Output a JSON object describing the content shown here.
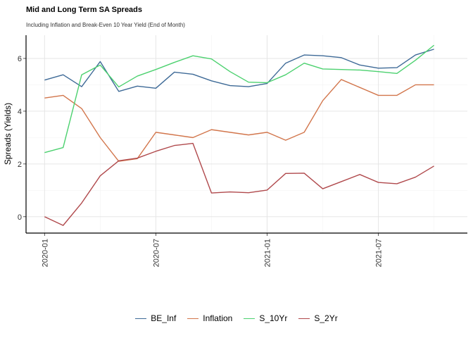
{
  "chart_data": {
    "type": "line",
    "title": "Mid and Long Term SA Spreads",
    "subtitle": "Including Inflation and Break-Even 10 Year Yield (End of Month)",
    "xlabel": "",
    "ylabel": "Spreads (Yields)",
    "x": [
      "2020-01",
      "2020-02",
      "2020-03",
      "2020-04",
      "2020-05",
      "2020-06",
      "2020-07",
      "2020-08",
      "2020-09",
      "2020-10",
      "2020-11",
      "2020-12",
      "2021-01",
      "2021-02",
      "2021-03",
      "2021-04",
      "2021-05",
      "2021-06",
      "2021-07",
      "2021-08",
      "2021-09",
      "2021-10"
    ],
    "x_tick_labels": [
      "2020-01",
      "2020-07",
      "2021-01",
      "2021-07"
    ],
    "x_tick_index": [
      0,
      6,
      12,
      18
    ],
    "xlim_index": [
      -1,
      22.8
    ],
    "y_ticks": [
      0,
      2,
      4,
      6
    ],
    "ylim": [
      -0.62,
      6.88
    ],
    "grid": true,
    "legend_position": "bottom",
    "series": [
      {
        "name": "BE_Inf",
        "color": "#3e6a97",
        "values": [
          5.18,
          5.38,
          4.93,
          5.88,
          4.75,
          4.95,
          4.87,
          5.48,
          5.4,
          5.15,
          4.97,
          4.93,
          5.05,
          5.82,
          6.13,
          6.1,
          6.03,
          5.75,
          5.63,
          5.65,
          6.13,
          6.35
        ]
      },
      {
        "name": "Inflation",
        "color": "#d2764c",
        "values": [
          4.5,
          4.6,
          4.1,
          3.0,
          2.1,
          2.2,
          3.2,
          3.1,
          3.0,
          3.3,
          3.2,
          3.1,
          3.2,
          2.9,
          3.2,
          4.4,
          5.2,
          4.9,
          4.6,
          4.6,
          5.0,
          5.0
        ]
      },
      {
        "name": "S_10Yr",
        "color": "#4cd16f",
        "values": [
          2.43,
          2.62,
          5.38,
          5.75,
          4.92,
          5.33,
          5.58,
          5.85,
          6.1,
          5.98,
          5.5,
          5.1,
          5.08,
          5.38,
          5.82,
          5.6,
          5.58,
          5.56,
          5.5,
          5.43,
          5.93,
          6.5
        ]
      },
      {
        "name": "S_2Yr",
        "color": "#b0494c",
        "values": [
          0.0,
          -0.33,
          0.52,
          1.55,
          2.12,
          2.22,
          2.48,
          2.7,
          2.78,
          0.9,
          0.94,
          0.91,
          1.01,
          1.64,
          1.65,
          1.06,
          1.33,
          1.6,
          1.3,
          1.25,
          1.5,
          1.92
        ]
      }
    ]
  }
}
